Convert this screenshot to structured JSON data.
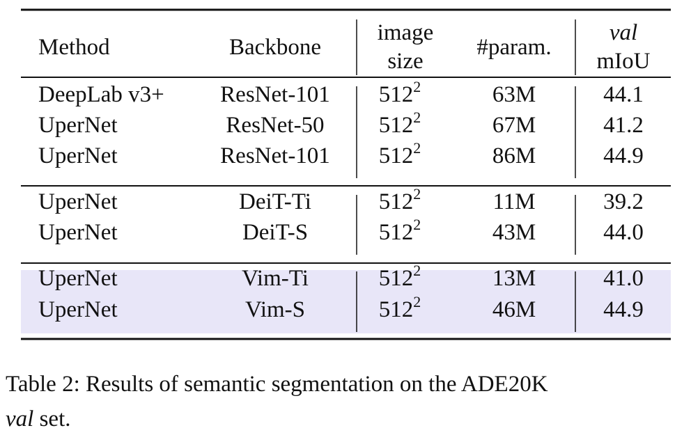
{
  "table": {
    "header": [
      [
        "Method"
      ],
      [
        "Backbone"
      ],
      [
        "image",
        "size"
      ],
      [
        "#param."
      ],
      [
        "val",
        "mIoU"
      ]
    ],
    "groups": [
      [
        [
          "DeepLab v3+",
          "ResNet-101",
          {
            "base": "512",
            "exp": "2"
          },
          "63M",
          "44.1"
        ],
        [
          "UperNet",
          "ResNet-50",
          {
            "base": "512",
            "exp": "2"
          },
          "67M",
          "41.2"
        ],
        [
          "UperNet",
          "ResNet-101",
          {
            "base": "512",
            "exp": "2"
          },
          "86M",
          "44.9"
        ]
      ],
      [
        [
          "UperNet",
          "DeiT-Ti",
          {
            "base": "512",
            "exp": "2"
          },
          "11M",
          "39.2"
        ],
        [
          "UperNet",
          "DeiT-S",
          {
            "base": "512",
            "exp": "2"
          },
          "43M",
          "44.0"
        ]
      ],
      [
        [
          "UperNet",
          "Vim-Ti",
          {
            "base": "512",
            "exp": "2"
          },
          "13M",
          "41.0"
        ],
        [
          "UperNet",
          "Vim-S",
          {
            "base": "512",
            "exp": "2"
          },
          "46M",
          "44.9"
        ]
      ]
    ]
  },
  "caption": {
    "line1": "Table 2: Results of semantic segmentation on the ADE20K",
    "italic": "val",
    "rest": "set."
  }
}
